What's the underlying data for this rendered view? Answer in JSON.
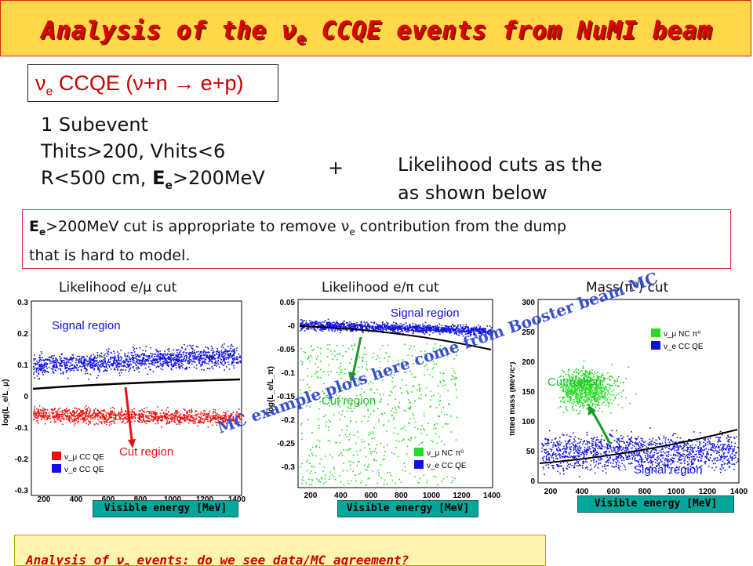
{
  "title": {
    "pre": "Analysis of the ",
    "nu": "ν",
    "sub": "e",
    "post": " CCQE events from NuMI beam"
  },
  "ccqe": {
    "nu": "ν",
    "sub": "e",
    "text": " CCQE (ν+n → e+p)"
  },
  "cuts": {
    "line1": "1 Subevent",
    "line2": "Thits>200, Vhits<6",
    "line3_pre": "R<500 cm, ",
    "line3_e": "E",
    "line3_sub": "e",
    "line3_post": ">200MeV"
  },
  "plus": "+",
  "likelihood": {
    "line1": "Likelihood cuts as the",
    "line2": "as shown below"
  },
  "note": {
    "e": "E",
    "esub": "e",
    "line1_post": ">200MeV cut is appropriate to remove ",
    "nu": "ν",
    "nusub": "e",
    "line1_end": " contribution from the dump",
    "line2": "that is hard to model."
  },
  "plots": {
    "p1": {
      "title": "Likelihood e/μ cut",
      "ylabel": "log(L_e/L_μ)",
      "yticks": [
        "0.3",
        "0.2",
        "0.1",
        "0",
        "-0.1",
        "-0.2",
        "-0.3"
      ],
      "xticks": [
        "200",
        "400",
        "600",
        "800",
        "1000",
        "1200",
        "1400"
      ],
      "signal_label": "Signal region",
      "cut_label": "Cut region",
      "legend": [
        "ν_μ CC QE",
        "ν_e CC QE"
      ],
      "xlabel": "Visible energy [MeV]"
    },
    "p2": {
      "title": "Likelihood e/π cut",
      "ylabel": "log(L_e/L_π)",
      "yticks": [
        "0.05",
        "-0",
        "-0.05",
        "-0.1",
        "-0.15",
        "-0.2",
        "-0.25",
        "-0.3"
      ],
      "xticks": [
        "200",
        "400",
        "600",
        "800",
        "1000",
        "1200",
        "1400"
      ],
      "signal_label": "Signal region",
      "cut_label": "Cut region",
      "legend": [
        "ν_μ NC π⁰",
        "ν_e CC QE"
      ],
      "xlabel": "Visible energy [MeV]"
    },
    "p3": {
      "title": "Mass(π⁰) cut",
      "ylabel": "fitted mass (MeV/c²)",
      "yticks": [
        "300",
        "250",
        "200",
        "150",
        "100",
        "50",
        "0"
      ],
      "xticks": [
        "200",
        "400",
        "600",
        "800",
        "1000",
        "1200",
        "1400"
      ],
      "signal_label": "Signal region",
      "cut_label": "Cut region",
      "legend": [
        "ν_μ NC π⁰",
        "ν_e CC QE"
      ],
      "xlabel": "Visible energy [MeV]"
    }
  },
  "watermark": "MC example plots here come from Booster beam MC",
  "bottom": {
    "pre": "Analysis of ",
    "nu": "ν",
    "sub": "e",
    "post": " events: do we see data/MC agreement?"
  },
  "colors": {
    "title_bg": "#ffd84a",
    "title_text": "#e00000",
    "accent_red": "#cc0000",
    "signal_blue": "#1010e0",
    "numu_red": "#ee1010",
    "nc_green": "#22dd22",
    "arrow_green": "#1b9a2a",
    "label_box": "#00a79a",
    "watermark": "#3a4fd0"
  }
}
